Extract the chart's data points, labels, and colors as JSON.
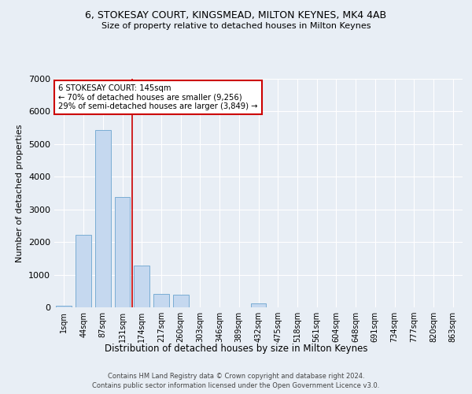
{
  "title1": "6, STOKESAY COURT, KINGSMEAD, MILTON KEYNES, MK4 4AB",
  "title2": "Size of property relative to detached houses in Milton Keynes",
  "xlabel": "Distribution of detached houses by size in Milton Keynes",
  "ylabel": "Number of detached properties",
  "categories": [
    "1sqm",
    "44sqm",
    "87sqm",
    "131sqm",
    "174sqm",
    "217sqm",
    "260sqm",
    "303sqm",
    "346sqm",
    "389sqm",
    "432sqm",
    "475sqm",
    "518sqm",
    "561sqm",
    "604sqm",
    "648sqm",
    "691sqm",
    "734sqm",
    "777sqm",
    "820sqm",
    "863sqm"
  ],
  "values": [
    55,
    2230,
    5420,
    3380,
    1290,
    415,
    390,
    0,
    0,
    0,
    115,
    0,
    0,
    0,
    0,
    0,
    0,
    0,
    0,
    0,
    0
  ],
  "bar_color": "#c5d8ef",
  "bar_edge_color": "#7aadd4",
  "vline_x": 3.5,
  "vline_color": "#cc0000",
  "annotation_lines": [
    "6 STOKESAY COURT: 145sqm",
    "← 70% of detached houses are smaller (9,256)",
    "29% of semi-detached houses are larger (3,849) →"
  ],
  "footer1": "Contains HM Land Registry data © Crown copyright and database right 2024.",
  "footer2": "Contains public sector information licensed under the Open Government Licence v3.0.",
  "ylim": [
    0,
    7000
  ],
  "yticks": [
    0,
    1000,
    2000,
    3000,
    4000,
    5000,
    6000,
    7000
  ],
  "bg_color": "#e8eef5",
  "plot_bg_color": "#e8eef5",
  "grid_color": "#ffffff"
}
